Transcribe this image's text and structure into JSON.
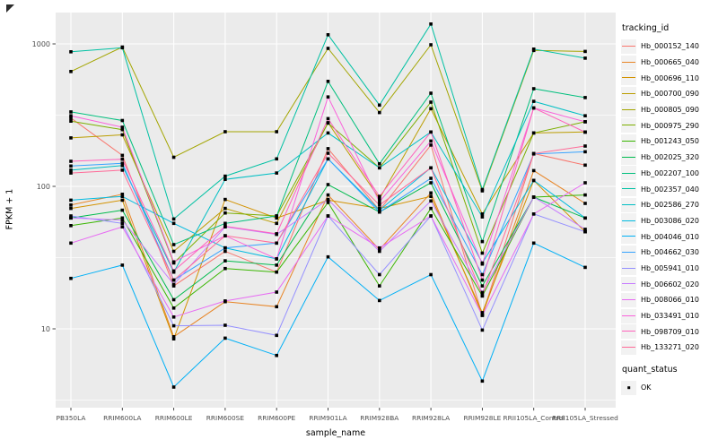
{
  "chart_data": {
    "type": "line",
    "title": "",
    "xlabel": "sample_name",
    "ylabel": "FPKM + 1",
    "y_scale": "log10",
    "ylim": [
      3,
      1500
    ],
    "grid": "on",
    "y_major_ticks": [
      1000,
      100,
      10
    ],
    "y_minor_gridlines": [
      316,
      31.6,
      3.16
    ],
    "legend_position": "right",
    "categories": [
      "PB350LA",
      "RRIM600LA",
      "RRIM600LE",
      "RRIM600SE",
      "RRIM600PE",
      "RRIM901LA",
      "RRIM928BA",
      "RRIM928LA",
      "RRIM928LE",
      "RRII105LA_Control",
      "RRII105LA_Stressed"
    ],
    "legend": {
      "series_title": "tracking_id",
      "status_title": "quant_status",
      "status_items": [
        {
          "label": "OK",
          "marker": "black-square"
        }
      ]
    },
    "series": [
      {
        "name": "Hb_000152_140",
        "color": "#F8766D",
        "values": [
          302,
          165,
          20,
          35,
          25,
          184,
          68,
          195,
          12.5,
          170,
          141
        ]
      },
      {
        "name": "Hb_000665_040",
        "color": "#E88526",
        "values": [
          74,
          88,
          8.8,
          15.5,
          14.3,
          87,
          36,
          90,
          12.5,
          129,
          76
        ]
      },
      {
        "name": "Hb_000696_110",
        "color": "#D39200",
        "values": [
          70,
          80,
          8.5,
          81,
          60,
          80,
          70,
          85,
          13,
          110,
          48
        ]
      },
      {
        "name": "Hb_000700_090",
        "color": "#BB9D00",
        "values": [
          219,
          230,
          35,
          70,
          55,
          280,
          82,
          351,
          64,
          237,
          241
        ]
      },
      {
        "name": "Hb_000805_090",
        "color": "#A3A500",
        "values": [
          640,
          950,
          160,
          242,
          242,
          930,
          330,
          986,
          93,
          900,
          886
        ]
      },
      {
        "name": "Hb_000975_290",
        "color": "#7CAE00",
        "values": [
          287,
          250,
          29,
          65,
          62,
          278,
          135,
          390,
          34,
          237,
          284
        ]
      },
      {
        "name": "Hb_001243_050",
        "color": "#39B600",
        "values": [
          53,
          60,
          14,
          26.5,
          25,
          77,
          20,
          70,
          17,
          84,
          87
        ]
      },
      {
        "name": "Hb_002025_320",
        "color": "#00BB4E",
        "values": [
          60,
          68,
          16,
          30,
          28,
          103,
          66,
          106,
          20,
          84,
          60
        ]
      },
      {
        "name": "Hb_002207_100",
        "color": "#00BF7D",
        "values": [
          333,
          290,
          39,
          55,
          62,
          546,
          144,
          451,
          41,
          485,
          420
        ]
      },
      {
        "name": "Hb_002357_040",
        "color": "#00C1A3",
        "values": [
          880,
          940,
          59,
          118,
          156,
          1160,
          372,
          1380,
          95,
          920,
          794
        ]
      },
      {
        "name": "Hb_002586_270",
        "color": "#00BFC4",
        "values": [
          130,
          140,
          25,
          112,
          124,
          237,
          135,
          241,
          61,
          395,
          313
        ]
      },
      {
        "name": "Hb_003086_020",
        "color": "#00BAE0",
        "values": [
          80,
          85,
          55,
          37,
          31,
          156,
          68,
          135,
          29,
          110,
          60
        ]
      },
      {
        "name": "Hb_004046_010",
        "color": "#00B0F6",
        "values": [
          22.6,
          28,
          3.9,
          8.6,
          6.5,
          32,
          15.8,
          24,
          4.3,
          40,
          27
        ]
      },
      {
        "name": "Hb_004662_030",
        "color": "#35A2FF",
        "values": [
          139,
          145,
          22,
          37,
          40,
          156,
          66,
          114,
          24,
          169,
          175
        ]
      },
      {
        "name": "Hb_005941_010",
        "color": "#9590FF",
        "values": [
          62,
          55,
          10.5,
          10.6,
          9,
          62,
          24,
          62,
          9.8,
          64,
          48
        ]
      },
      {
        "name": "Hb_006602_020",
        "color": "#C77CFF",
        "values": [
          60,
          58,
          20.5,
          52,
          46,
          81,
          35,
          79,
          18,
          84,
          50
        ]
      },
      {
        "name": "Hb_008066_010",
        "color": "#E76BF3",
        "values": [
          40,
          52,
          12.1,
          15.7,
          18.1,
          62,
          37,
          62,
          12.4,
          64,
          106
        ]
      },
      {
        "name": "Hb_033491_010",
        "color": "#FA62DB",
        "values": [
          313,
          260,
          29.5,
          45,
          31,
          424,
          78,
          208,
          28.5,
          355,
          284
        ]
      },
      {
        "name": "Hb_098709_010",
        "color": "#FF62BC",
        "values": [
          150,
          155,
          25.5,
          52.5,
          46.5,
          299,
          85,
          241,
          22,
          355,
          240
        ]
      },
      {
        "name": "Hb_133271_020",
        "color": "#FF6A98",
        "values": [
          124,
          130,
          22,
          45,
          40,
          171,
          74,
          135,
          17.2,
          170,
          192
        ]
      }
    ],
    "style": {
      "panel_bg": "#EBEBEB",
      "gridline_color": "#FFFFFF",
      "tick_label_color": "#4D4D4D",
      "tick_mark_color": "#333333",
      "point_color": "#000000",
      "legend_key_bg": "#F2F2F2"
    }
  }
}
